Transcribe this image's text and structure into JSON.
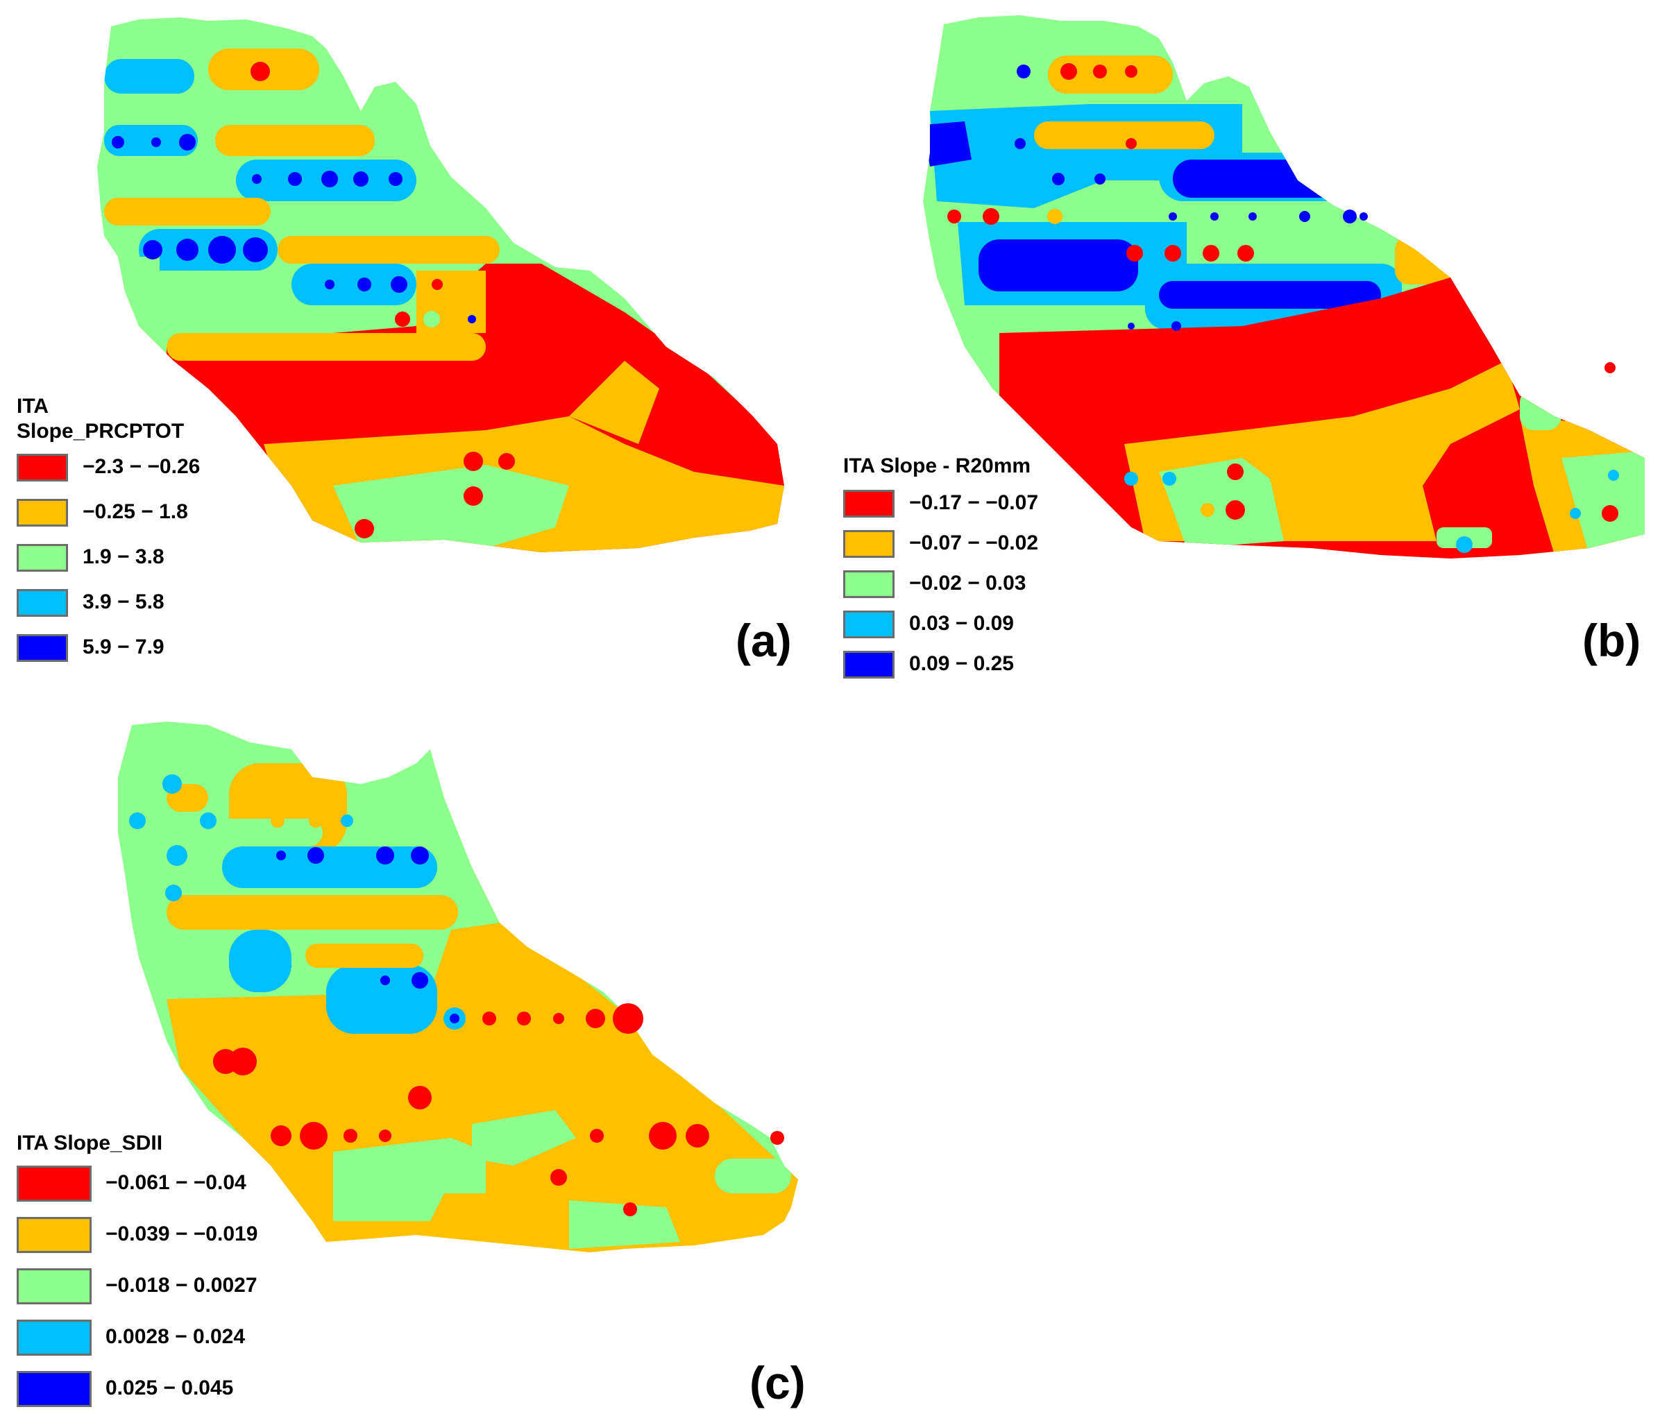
{
  "colors": {
    "red": "#ff0000",
    "orange": "#ffc000",
    "green": "#8cff8c",
    "cyan": "#00bfff",
    "blue": "#0000ff"
  },
  "panels": [
    {
      "label": "(a)",
      "legend_title": "ITA\nSlope_PRCPTOT",
      "classes": [
        {
          "range": "−2.3 − −0.26",
          "color": "#ff0000"
        },
        {
          "range": "−0.25 − 1.8",
          "color": "#ffc000"
        },
        {
          "range": "1.9 − 3.8",
          "color": "#8cff8c"
        },
        {
          "range": "3.9 − 5.8",
          "color": "#00bfff"
        },
        {
          "range": "5.9 − 7.9",
          "color": "#0000ff"
        }
      ]
    },
    {
      "label": "(b)",
      "legend_title": "ITA Slope - R20mm",
      "classes": [
        {
          "range": "−0.17 − −0.07",
          "color": "#ff0000"
        },
        {
          "range": "−0.07 − −0.02",
          "color": "#ffc000"
        },
        {
          "range": "−0.02 − 0.03",
          "color": "#8cff8c"
        },
        {
          "range": "0.03 − 0.09",
          "color": "#00bfff"
        },
        {
          "range": "0.09 − 0.25",
          "color": "#0000ff"
        }
      ]
    },
    {
      "label": "(c)",
      "legend_title": "ITA Slope_SDII",
      "classes": [
        {
          "range": "−0.061 − −0.04",
          "color": "#ff0000"
        },
        {
          "range": "−0.039 − −0.019",
          "color": "#ffc000"
        },
        {
          "range": "−0.018 − 0.0027",
          "color": "#8cff8c"
        },
        {
          "range": "0.0028 − 0.024",
          "color": "#00bfff"
        },
        {
          "range": "0.025 − 0.045",
          "color": "#0000ff"
        }
      ]
    }
  ]
}
